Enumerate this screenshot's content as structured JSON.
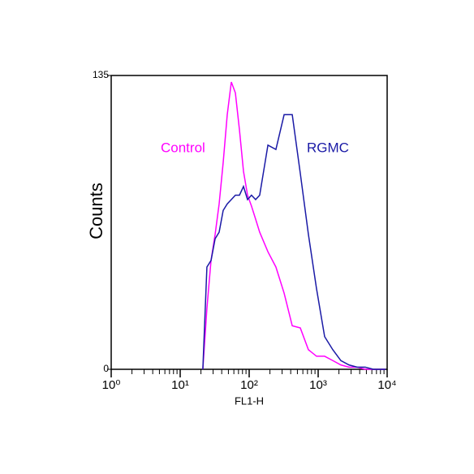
{
  "chart_data": {
    "type": "line",
    "xlabel": "FL1-H",
    "ylabel": "Counts",
    "xscale": "log",
    "xlim": [
      1,
      10000
    ],
    "ylim": [
      0,
      135
    ],
    "xticks": [
      {
        "value": 1,
        "label": "10⁰"
      },
      {
        "value": 10,
        "label": "10¹"
      },
      {
        "value": 100,
        "label": "10²"
      },
      {
        "value": 1000,
        "label": "10³"
      },
      {
        "value": 10000,
        "label": "10⁴"
      }
    ],
    "yticks": [
      0,
      135
    ],
    "x": [
      21.3,
      24.4,
      28.0,
      32.1,
      36.7,
      42.0,
      48.1,
      55.1,
      63.1,
      72.3,
      82.7,
      94.7,
      108,
      124,
      142,
      187,
      244,
      321,
      421,
      551,
      722,
      947,
      1241,
      1629,
      2134,
      2799,
      3673,
      4808,
      6310,
      8279,
      9470
    ],
    "series": [
      {
        "name": "Control",
        "color": "#ff00ff",
        "values": [
          0,
          28,
          50,
          62,
          76,
          95,
          117,
          132,
          127,
          110,
          91,
          80,
          75,
          69,
          63,
          54,
          47,
          35,
          20,
          19,
          9,
          6,
          6,
          4,
          2,
          1,
          1,
          0,
          0,
          0,
          0
        ]
      },
      {
        "name": "RGMC",
        "color": "#1a1aa6",
        "values": [
          0,
          47,
          50,
          60,
          63,
          73,
          76,
          78,
          80,
          80,
          84,
          78,
          80,
          78,
          80,
          103,
          101,
          117,
          117,
          90,
          62,
          37,
          15,
          9,
          4,
          2,
          1,
          1,
          0,
          0,
          0
        ]
      }
    ]
  }
}
